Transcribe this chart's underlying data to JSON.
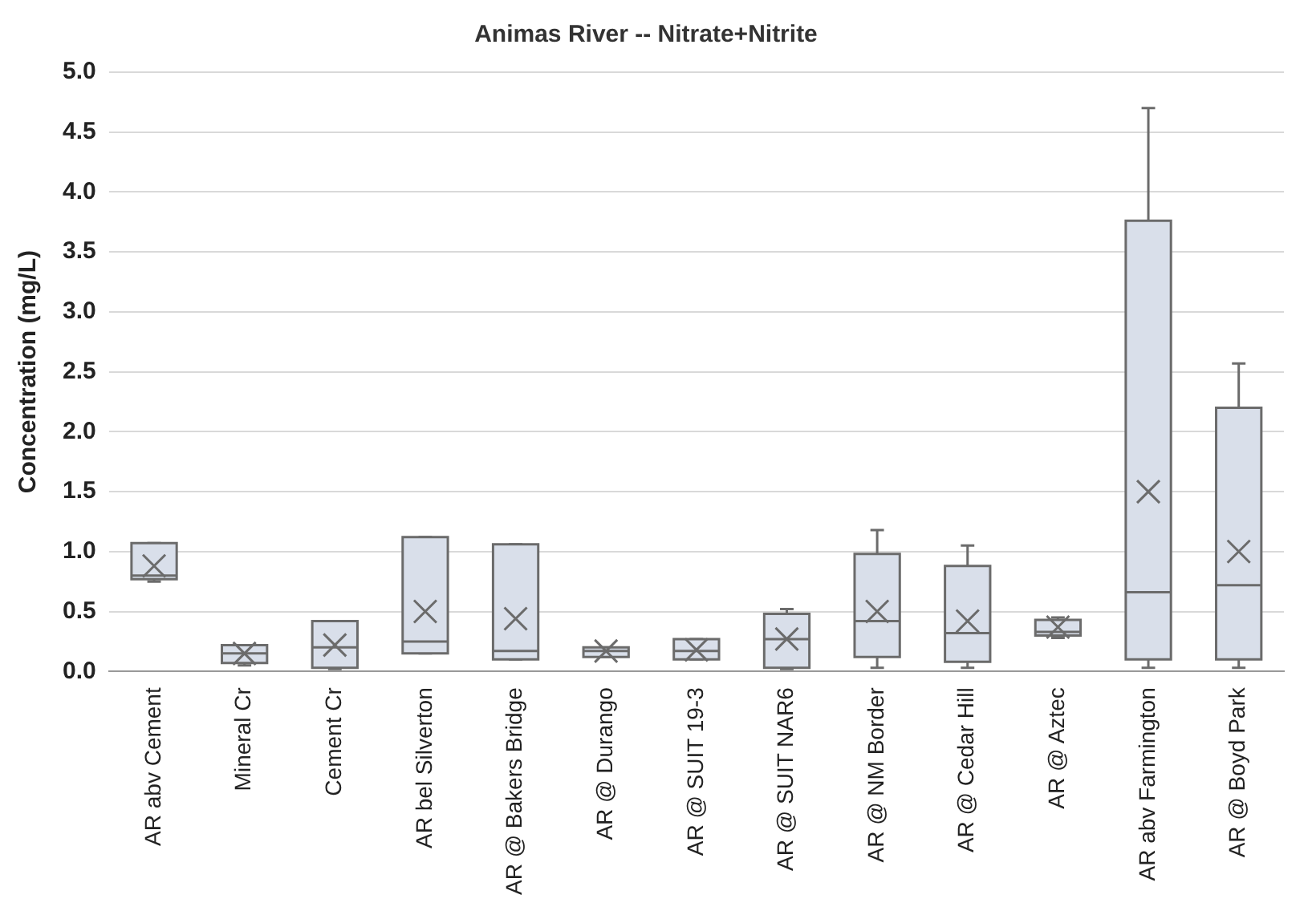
{
  "chart_data": {
    "type": "box",
    "title": "Animas River -- Nitrate+Nitrite",
    "ylabel": "Concentration (mg/L)",
    "categories": [
      "AR abv Cement",
      "Mineral Cr",
      "Cement Cr",
      "AR bel Silverton",
      "AR @ Bakers Bridge",
      "AR @ Durango",
      "AR @ SUIT 19-3",
      "AR @ SUIT NAR6",
      "AR @ NM Border",
      "AR @ Cedar Hill",
      "AR @ Aztec",
      "AR abv Farmington",
      "AR @ Boyd Park"
    ],
    "boxes": [
      {
        "low": 0.75,
        "q1": 0.77,
        "median": 0.8,
        "q3": 1.07,
        "high": 1.07,
        "mean": 0.88
      },
      {
        "low": 0.05,
        "q1": 0.07,
        "median": 0.15,
        "q3": 0.22,
        "high": 0.22,
        "mean": 0.15
      },
      {
        "low": 0.02,
        "q1": 0.03,
        "median": 0.2,
        "q3": 0.42,
        "high": 0.42,
        "mean": 0.22
      },
      {
        "low": 0.15,
        "q1": 0.15,
        "median": 0.25,
        "q3": 1.12,
        "high": 1.12,
        "mean": 0.5
      },
      {
        "low": 0.1,
        "q1": 0.1,
        "median": 0.17,
        "q3": 1.06,
        "high": 1.06,
        "mean": 0.44
      },
      {
        "low": 0.12,
        "q1": 0.12,
        "median": 0.17,
        "q3": 0.2,
        "high": 0.2,
        "mean": 0.17
      },
      {
        "low": 0.1,
        "q1": 0.1,
        "median": 0.17,
        "q3": 0.27,
        "high": 0.27,
        "mean": 0.18
      },
      {
        "low": 0.02,
        "q1": 0.03,
        "median": 0.27,
        "q3": 0.48,
        "high": 0.52,
        "mean": 0.27
      },
      {
        "low": 0.03,
        "q1": 0.12,
        "median": 0.42,
        "q3": 0.98,
        "high": 1.18,
        "mean": 0.5
      },
      {
        "low": 0.03,
        "q1": 0.08,
        "median": 0.32,
        "q3": 0.88,
        "high": 1.05,
        "mean": 0.42
      },
      {
        "low": 0.28,
        "q1": 0.3,
        "median": 0.33,
        "q3": 0.43,
        "high": 0.45,
        "mean": 0.37
      },
      {
        "low": 0.03,
        "q1": 0.1,
        "median": 0.66,
        "q3": 3.76,
        "high": 4.7,
        "mean": 1.5
      },
      {
        "low": 0.03,
        "q1": 0.1,
        "median": 0.72,
        "q3": 2.2,
        "high": 2.57,
        "mean": 1.0
      }
    ],
    "color": "#d9dfea",
    "ylim": [
      0,
      5
    ],
    "yticks": [
      {
        "value": 0,
        "label": "0.0"
      },
      {
        "value": 0.5,
        "label": "0.5"
      },
      {
        "value": 1,
        "label": "1.0"
      },
      {
        "value": 1.5,
        "label": "1.5"
      },
      {
        "value": 2,
        "label": "2.0"
      },
      {
        "value": 2.5,
        "label": "2.5"
      },
      {
        "value": 3,
        "label": "3.0"
      },
      {
        "value": 3.5,
        "label": "3.5"
      },
      {
        "value": 4,
        "label": "4.0"
      },
      {
        "value": 4.5,
        "label": "4.5"
      },
      {
        "value": 5,
        "label": "5.0"
      }
    ],
    "grid": "y"
  }
}
